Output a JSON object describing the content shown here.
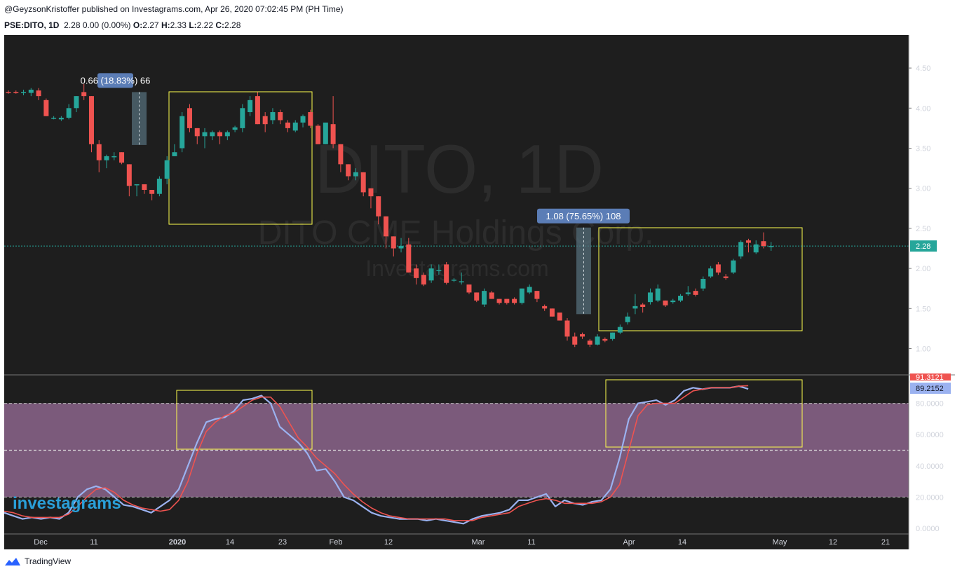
{
  "header": {
    "publisher_line": "@GeyzsonKristoffer published on Investagrams.com, Apr 26, 2020 07:02:45 PM (PH Time)",
    "symbol": "PSE:DITO, 1D",
    "quote": "2.28 0.00 (0.00%)",
    "o_label": "O:",
    "o_value": "2.27",
    "h_label": "H:",
    "h_value": "2.33",
    "l_label": "L:",
    "l_value": "2.22",
    "c_label": "C:",
    "c_value": "2.28"
  },
  "watermark": {
    "line1": "DITO, 1D",
    "line2": "DITO CME Holdings Corp.",
    "line3": "Investagrams.com"
  },
  "branding": {
    "investagrams": "investagrams",
    "tradingview": "TradingView"
  },
  "colors": {
    "background": "#1e1e1e",
    "up": "#26a69a",
    "down": "#ef5350",
    "k_line": "#9bb2f0",
    "d_line": "#ef5350",
    "band_fill": "#7b5a7b",
    "highlight_box": "#ffff4d",
    "price_line": "#26a69a",
    "label_bg": "#5b7db6"
  },
  "chart_data": {
    "type": "candlestick",
    "symbol": "PSE:DITO",
    "interval": "1D",
    "price_axis": {
      "ticks": [
        "4.50",
        "4.00",
        "3.50",
        "3.00",
        "2.50",
        "2.00",
        "1.50",
        "1.00"
      ],
      "ylim": [
        0.8,
        4.85
      ]
    },
    "time_axis": [
      "Dec",
      "11",
      "2020",
      "14",
      "23",
      "Feb",
      "12",
      "Mar",
      "11",
      "Apr",
      "14",
      "May",
      "12",
      "21"
    ],
    "candles": [
      {
        "o": 4.2,
        "h": 4.22,
        "l": 4.18,
        "c": 4.19
      },
      {
        "o": 4.2,
        "h": 4.22,
        "l": 4.18,
        "c": 4.19
      },
      {
        "o": 4.19,
        "h": 4.23,
        "l": 4.16,
        "c": 4.2
      },
      {
        "o": 4.19,
        "h": 4.25,
        "l": 4.15,
        "c": 4.23
      },
      {
        "o": 4.22,
        "h": 4.25,
        "l": 4.1,
        "c": 4.15
      },
      {
        "o": 4.1,
        "h": 4.12,
        "l": 3.9,
        "c": 3.9
      },
      {
        "o": 3.88,
        "h": 3.9,
        "l": 3.86,
        "c": 3.88
      },
      {
        "o": 3.86,
        "h": 3.9,
        "l": 3.84,
        "c": 3.88
      },
      {
        "o": 3.88,
        "h": 4.05,
        "l": 3.86,
        "c": 4.0
      },
      {
        "o": 4.0,
        "h": 4.15,
        "l": 3.95,
        "c": 4.15
      },
      {
        "o": 4.2,
        "h": 4.3,
        "l": 4.1,
        "c": 4.15
      },
      {
        "o": 4.15,
        "h": 4.15,
        "l": 3.45,
        "c": 3.55
      },
      {
        "o": 3.55,
        "h": 3.6,
        "l": 3.2,
        "c": 3.35
      },
      {
        "o": 3.35,
        "h": 3.42,
        "l": 3.25,
        "c": 3.4
      },
      {
        "o": 3.4,
        "h": 3.45,
        "l": 3.35,
        "c": 3.4
      },
      {
        "o": 3.45,
        "h": 3.45,
        "l": 3.3,
        "c": 3.32
      },
      {
        "o": 3.3,
        "h": 3.3,
        "l": 2.9,
        "c": 3.03
      },
      {
        "o": 3.05,
        "h": 3.05,
        "l": 2.9,
        "c": 3.05
      },
      {
        "o": 3.05,
        "h": 3.05,
        "l": 2.93,
        "c": 2.98
      },
      {
        "o": 2.98,
        "h": 2.98,
        "l": 2.85,
        "c": 2.93
      },
      {
        "o": 2.93,
        "h": 3.15,
        "l": 2.9,
        "c": 3.12
      },
      {
        "o": 3.12,
        "h": 3.4,
        "l": 3.05,
        "c": 3.35
      },
      {
        "o": 3.4,
        "h": 3.55,
        "l": 3.4,
        "c": 3.45
      },
      {
        "o": 3.5,
        "h": 3.95,
        "l": 3.45,
        "c": 3.9
      },
      {
        "o": 4.0,
        "h": 4.05,
        "l": 3.7,
        "c": 3.75
      },
      {
        "o": 3.75,
        "h": 3.75,
        "l": 3.55,
        "c": 3.65
      },
      {
        "o": 3.65,
        "h": 3.75,
        "l": 3.5,
        "c": 3.7
      },
      {
        "o": 3.65,
        "h": 3.72,
        "l": 3.6,
        "c": 3.7
      },
      {
        "o": 3.7,
        "h": 3.72,
        "l": 3.55,
        "c": 3.65
      },
      {
        "o": 3.65,
        "h": 3.72,
        "l": 3.6,
        "c": 3.7
      },
      {
        "o": 3.73,
        "h": 3.78,
        "l": 3.7,
        "c": 3.76
      },
      {
        "o": 3.75,
        "h": 4.05,
        "l": 3.7,
        "c": 4.0
      },
      {
        "o": 3.95,
        "h": 4.15,
        "l": 3.9,
        "c": 4.1
      },
      {
        "o": 4.15,
        "h": 4.2,
        "l": 3.8,
        "c": 3.8
      },
      {
        "o": 3.9,
        "h": 3.95,
        "l": 3.7,
        "c": 3.8
      },
      {
        "o": 3.85,
        "h": 4.0,
        "l": 3.8,
        "c": 3.95
      },
      {
        "o": 3.95,
        "h": 3.98,
        "l": 3.8,
        "c": 3.85
      },
      {
        "o": 3.82,
        "h": 3.85,
        "l": 3.7,
        "c": 3.75
      },
      {
        "o": 3.72,
        "h": 3.85,
        "l": 3.7,
        "c": 3.82
      },
      {
        "o": 3.82,
        "h": 3.92,
        "l": 3.76,
        "c": 3.9
      },
      {
        "o": 3.95,
        "h": 3.98,
        "l": 3.75,
        "c": 3.78
      },
      {
        "o": 3.78,
        "h": 3.8,
        "l": 3.55,
        "c": 3.55
      },
      {
        "o": 3.55,
        "h": 3.8,
        "l": 3.55,
        "c": 3.82
      },
      {
        "o": 3.8,
        "h": 4.15,
        "l": 3.5,
        "c": 3.55
      },
      {
        "o": 3.55,
        "h": 3.55,
        "l": 3.2,
        "c": 3.3
      },
      {
        "o": 3.3,
        "h": 3.3,
        "l": 3.1,
        "c": 3.15
      },
      {
        "o": 3.15,
        "h": 3.25,
        "l": 3.1,
        "c": 3.2
      },
      {
        "o": 3.2,
        "h": 3.2,
        "l": 2.9,
        "c": 2.95
      },
      {
        "o": 3.0,
        "h": 3.0,
        "l": 2.75,
        "c": 2.9
      },
      {
        "o": 2.9,
        "h": 2.9,
        "l": 2.55,
        "c": 2.65
      },
      {
        "o": 2.65,
        "h": 2.65,
        "l": 2.25,
        "c": 2.4
      },
      {
        "o": 2.4,
        "h": 2.4,
        "l": 2.15,
        "c": 2.25
      },
      {
        "o": 2.25,
        "h": 2.38,
        "l": 2.2,
        "c": 2.28
      },
      {
        "o": 2.3,
        "h": 2.38,
        "l": 1.95,
        "c": 1.95
      },
      {
        "o": 2.0,
        "h": 2.05,
        "l": 1.8,
        "c": 1.88
      },
      {
        "o": 1.92,
        "h": 1.95,
        "l": 1.78,
        "c": 1.8
      },
      {
        "o": 1.85,
        "h": 2.05,
        "l": 1.82,
        "c": 2.0
      },
      {
        "o": 1.98,
        "h": 2.05,
        "l": 1.92,
        "c": 1.98
      },
      {
        "o": 2.05,
        "h": 2.08,
        "l": 1.8,
        "c": 1.82
      },
      {
        "o": 1.85,
        "h": 1.88,
        "l": 1.83,
        "c": 1.86
      },
      {
        "o": 1.84,
        "h": 1.95,
        "l": 1.8,
        "c": 1.84
      },
      {
        "o": 1.8,
        "h": 1.8,
        "l": 1.68,
        "c": 1.7
      },
      {
        "o": 1.7,
        "h": 1.7,
        "l": 1.58,
        "c": 1.6
      },
      {
        "o": 1.55,
        "h": 1.75,
        "l": 1.52,
        "c": 1.72
      },
      {
        "o": 1.7,
        "h": 1.72,
        "l": 1.62,
        "c": 1.62
      },
      {
        "o": 1.62,
        "h": 1.62,
        "l": 1.55,
        "c": 1.57
      },
      {
        "o": 1.62,
        "h": 1.62,
        "l": 1.55,
        "c": 1.57
      },
      {
        "o": 1.62,
        "h": 1.64,
        "l": 1.55,
        "c": 1.57
      },
      {
        "o": 1.57,
        "h": 1.75,
        "l": 1.55,
        "c": 1.75
      },
      {
        "o": 1.7,
        "h": 1.8,
        "l": 1.68,
        "c": 1.77
      },
      {
        "o": 1.72,
        "h": 1.72,
        "l": 1.58,
        "c": 1.62
      },
      {
        "o": 1.53,
        "h": 1.55,
        "l": 1.47,
        "c": 1.5
      },
      {
        "o": 1.5,
        "h": 1.5,
        "l": 1.4,
        "c": 1.4
      },
      {
        "o": 1.45,
        "h": 1.45,
        "l": 1.35,
        "c": 1.35
      },
      {
        "o": 1.35,
        "h": 1.38,
        "l": 1.1,
        "c": 1.15
      },
      {
        "o": 1.15,
        "h": 1.2,
        "l": 1.02,
        "c": 1.05
      },
      {
        "o": 1.18,
        "h": 1.2,
        "l": 1.12,
        "c": 1.15
      },
      {
        "o": 1.1,
        "h": 1.12,
        "l": 1.02,
        "c": 1.05
      },
      {
        "o": 1.05,
        "h": 1.18,
        "l": 1.04,
        "c": 1.15
      },
      {
        "o": 1.12,
        "h": 1.14,
        "l": 1.08,
        "c": 1.1
      },
      {
        "o": 1.12,
        "h": 1.2,
        "l": 1.1,
        "c": 1.2
      },
      {
        "o": 1.2,
        "h": 1.3,
        "l": 1.18,
        "c": 1.27
      },
      {
        "o": 1.33,
        "h": 1.45,
        "l": 1.3,
        "c": 1.4
      },
      {
        "o": 1.5,
        "h": 1.68,
        "l": 1.43,
        "c": 1.53
      },
      {
        "o": 1.55,
        "h": 1.57,
        "l": 1.45,
        "c": 1.52
      },
      {
        "o": 1.58,
        "h": 1.75,
        "l": 1.55,
        "c": 1.7
      },
      {
        "o": 1.6,
        "h": 1.8,
        "l": 1.58,
        "c": 1.75
      },
      {
        "o": 1.6,
        "h": 1.6,
        "l": 1.52,
        "c": 1.54
      },
      {
        "o": 1.58,
        "h": 1.62,
        "l": 1.56,
        "c": 1.6
      },
      {
        "o": 1.6,
        "h": 1.68,
        "l": 1.58,
        "c": 1.66
      },
      {
        "o": 1.68,
        "h": 1.78,
        "l": 1.66,
        "c": 1.7
      },
      {
        "o": 1.72,
        "h": 1.75,
        "l": 1.65,
        "c": 1.67
      },
      {
        "o": 1.75,
        "h": 1.9,
        "l": 1.72,
        "c": 1.87
      },
      {
        "o": 1.9,
        "h": 2.03,
        "l": 1.88,
        "c": 2.0
      },
      {
        "o": 2.05,
        "h": 2.08,
        "l": 1.92,
        "c": 1.95
      },
      {
        "o": 1.9,
        "h": 1.93,
        "l": 1.86,
        "c": 1.88
      },
      {
        "o": 1.95,
        "h": 2.12,
        "l": 1.93,
        "c": 2.1
      },
      {
        "o": 2.15,
        "h": 2.35,
        "l": 2.12,
        "c": 2.33
      },
      {
        "o": 2.35,
        "h": 2.37,
        "l": 2.2,
        "c": 2.32
      },
      {
        "o": 2.2,
        "h": 2.35,
        "l": 2.18,
        "c": 2.3
      },
      {
        "o": 2.34,
        "h": 2.45,
        "l": 2.25,
        "c": 2.28
      },
      {
        "o": 2.27,
        "h": 2.33,
        "l": 2.22,
        "c": 2.28
      }
    ],
    "last_price": "2.28",
    "measure_labels": [
      {
        "text": "0.66 (18.83%) 66",
        "from": 3.54,
        "to": 4.2
      },
      {
        "text": "1.08 (75.65%) 108",
        "from": 1.43,
        "to": 2.51
      }
    ],
    "oscillator": {
      "type": "stochastic",
      "ticks": [
        "80.0000",
        "60.0000",
        "40.0000",
        "20.0000",
        "0.0000"
      ],
      "upper_band": 80,
      "lower_band": 20,
      "mid_line": 50,
      "k_value_label": "89.2152",
      "d_value_label": "91.3121",
      "k": [
        10,
        8,
        6,
        7,
        6,
        7,
        6,
        10,
        20,
        25,
        27,
        25,
        20,
        15,
        14,
        12,
        10,
        14,
        18,
        25,
        40,
        55,
        68,
        70,
        71,
        75,
        82,
        83,
        85,
        80,
        65,
        60,
        55,
        48,
        37,
        38,
        30,
        20,
        18,
        14,
        10,
        8,
        7,
        6,
        6,
        6,
        5,
        6,
        5,
        4,
        3,
        6,
        8,
        9,
        10,
        12,
        18,
        18,
        20,
        22,
        14,
        18,
        16,
        15,
        17,
        18,
        25,
        45,
        70,
        80,
        81,
        82,
        79,
        82,
        88,
        90,
        89,
        90,
        90,
        90,
        91,
        89.2
      ],
      "d": [
        11,
        10,
        8,
        7,
        7,
        7,
        7,
        9,
        14,
        20,
        25,
        26,
        23,
        18,
        15,
        13,
        12,
        11,
        12,
        18,
        30,
        48,
        62,
        68,
        72,
        74,
        78,
        82,
        84,
        84,
        78,
        68,
        58,
        52,
        45,
        40,
        35,
        28,
        22,
        17,
        13,
        10,
        8,
        7,
        6,
        6,
        6,
        6,
        6,
        5,
        5,
        5,
        7,
        8,
        9,
        10,
        14,
        16,
        18,
        19,
        18,
        16,
        16,
        16,
        16,
        17,
        20,
        28,
        50,
        72,
        79,
        80,
        80,
        80,
        84,
        88,
        89,
        90,
        90,
        90,
        91,
        91.3
      ]
    }
  }
}
